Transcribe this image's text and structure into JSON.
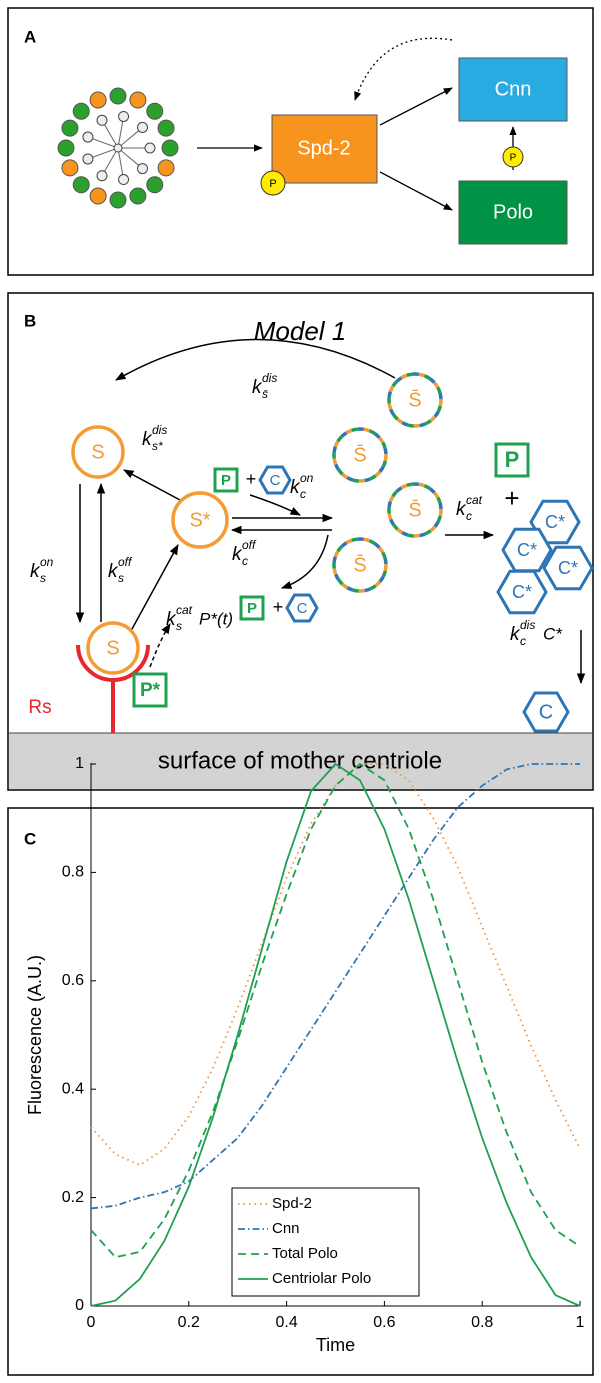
{
  "panel_a": {
    "label": "A",
    "nodes": {
      "spd2": "Spd-2",
      "cnn": "Cnn",
      "polo": "Polo"
    },
    "phospho": [
      "P",
      "P"
    ]
  },
  "panel_b": {
    "label": "B",
    "title": "Model 1",
    "s": "S",
    "s_star": "S*",
    "s_bound": "S",
    "s_bar": [
      "S̄",
      "S̄",
      "S̄",
      "S̄"
    ],
    "receptor": "Rs",
    "p_star": "P*",
    "p": [
      "P",
      "P",
      "P"
    ],
    "plus": [
      "+",
      "+",
      "+"
    ],
    "c": [
      "C",
      "C",
      "C"
    ],
    "c_star": [
      "C*",
      "C*",
      "C*",
      "C*"
    ],
    "rates": [
      {
        "base": "k",
        "sub": "s̄",
        "sup": "dis"
      },
      {
        "base": "k",
        "sub": "s*",
        "sup": "dis"
      },
      {
        "base": "k",
        "sub": "s",
        "sup": "on"
      },
      {
        "base": "k",
        "sub": "s",
        "sup": "off"
      },
      {
        "base": "k",
        "sub": "c",
        "sup": "on"
      },
      {
        "base": "k",
        "sub": "c",
        "sup": "off"
      },
      {
        "base": "k",
        "sub": "c",
        "sup": "cat"
      },
      {
        "base": "k",
        "sub": "c",
        "sup": "dis",
        "tail": "C*"
      },
      {
        "base": "k",
        "sub": "s",
        "sup": "cat",
        "tail": "P*(t)"
      }
    ],
    "surface": "surface of mother centriole"
  },
  "chart_data": {
    "type": "line",
    "panel_label": "C",
    "xlabel": "Time",
    "ylabel": "Fluorescence (A.U.)",
    "xlim": [
      0,
      1
    ],
    "ylim": [
      0,
      1
    ],
    "xticks": [
      0,
      0.2,
      0.4,
      0.6,
      0.8,
      1
    ],
    "yticks": [
      0,
      0.2,
      0.4,
      0.6,
      0.8,
      1
    ],
    "legend": "lower center",
    "grid": false,
    "x": [
      0,
      0.05,
      0.1,
      0.15,
      0.2,
      0.25,
      0.3,
      0.35,
      0.4,
      0.45,
      0.5,
      0.55,
      0.6,
      0.65,
      0.7,
      0.75,
      0.8,
      0.85,
      0.9,
      0.95,
      1
    ],
    "series": [
      {
        "name": "Spd-2",
        "color": "#f0923c",
        "linestyle": "dotted",
        "values": [
          0.33,
          0.28,
          0.26,
          0.29,
          0.35,
          0.44,
          0.55,
          0.67,
          0.79,
          0.89,
          0.96,
          1.0,
          1.0,
          0.97,
          0.9,
          0.81,
          0.7,
          0.59,
          0.48,
          0.38,
          0.29
        ]
      },
      {
        "name": "Cnn",
        "color": "#2e75b6",
        "linestyle": "dashdot",
        "values": [
          0.18,
          0.185,
          0.2,
          0.21,
          0.23,
          0.27,
          0.31,
          0.37,
          0.44,
          0.51,
          0.58,
          0.65,
          0.72,
          0.79,
          0.86,
          0.92,
          0.96,
          0.99,
          1.0,
          1.0,
          1.0
        ]
      },
      {
        "name": "Total Polo",
        "color": "#1fa050",
        "linestyle": "dashed",
        "values": [
          0.14,
          0.09,
          0.1,
          0.16,
          0.25,
          0.36,
          0.49,
          0.63,
          0.76,
          0.88,
          0.96,
          1.0,
          0.97,
          0.88,
          0.75,
          0.6,
          0.45,
          0.32,
          0.21,
          0.14,
          0.11
        ]
      },
      {
        "name": "Centriolar Polo",
        "color": "#1fa050",
        "linestyle": "solid",
        "values": [
          0,
          0.01,
          0.05,
          0.12,
          0.22,
          0.35,
          0.5,
          0.66,
          0.82,
          0.95,
          1.0,
          0.97,
          0.88,
          0.75,
          0.6,
          0.45,
          0.31,
          0.19,
          0.09,
          0.02,
          0
        ]
      }
    ]
  }
}
